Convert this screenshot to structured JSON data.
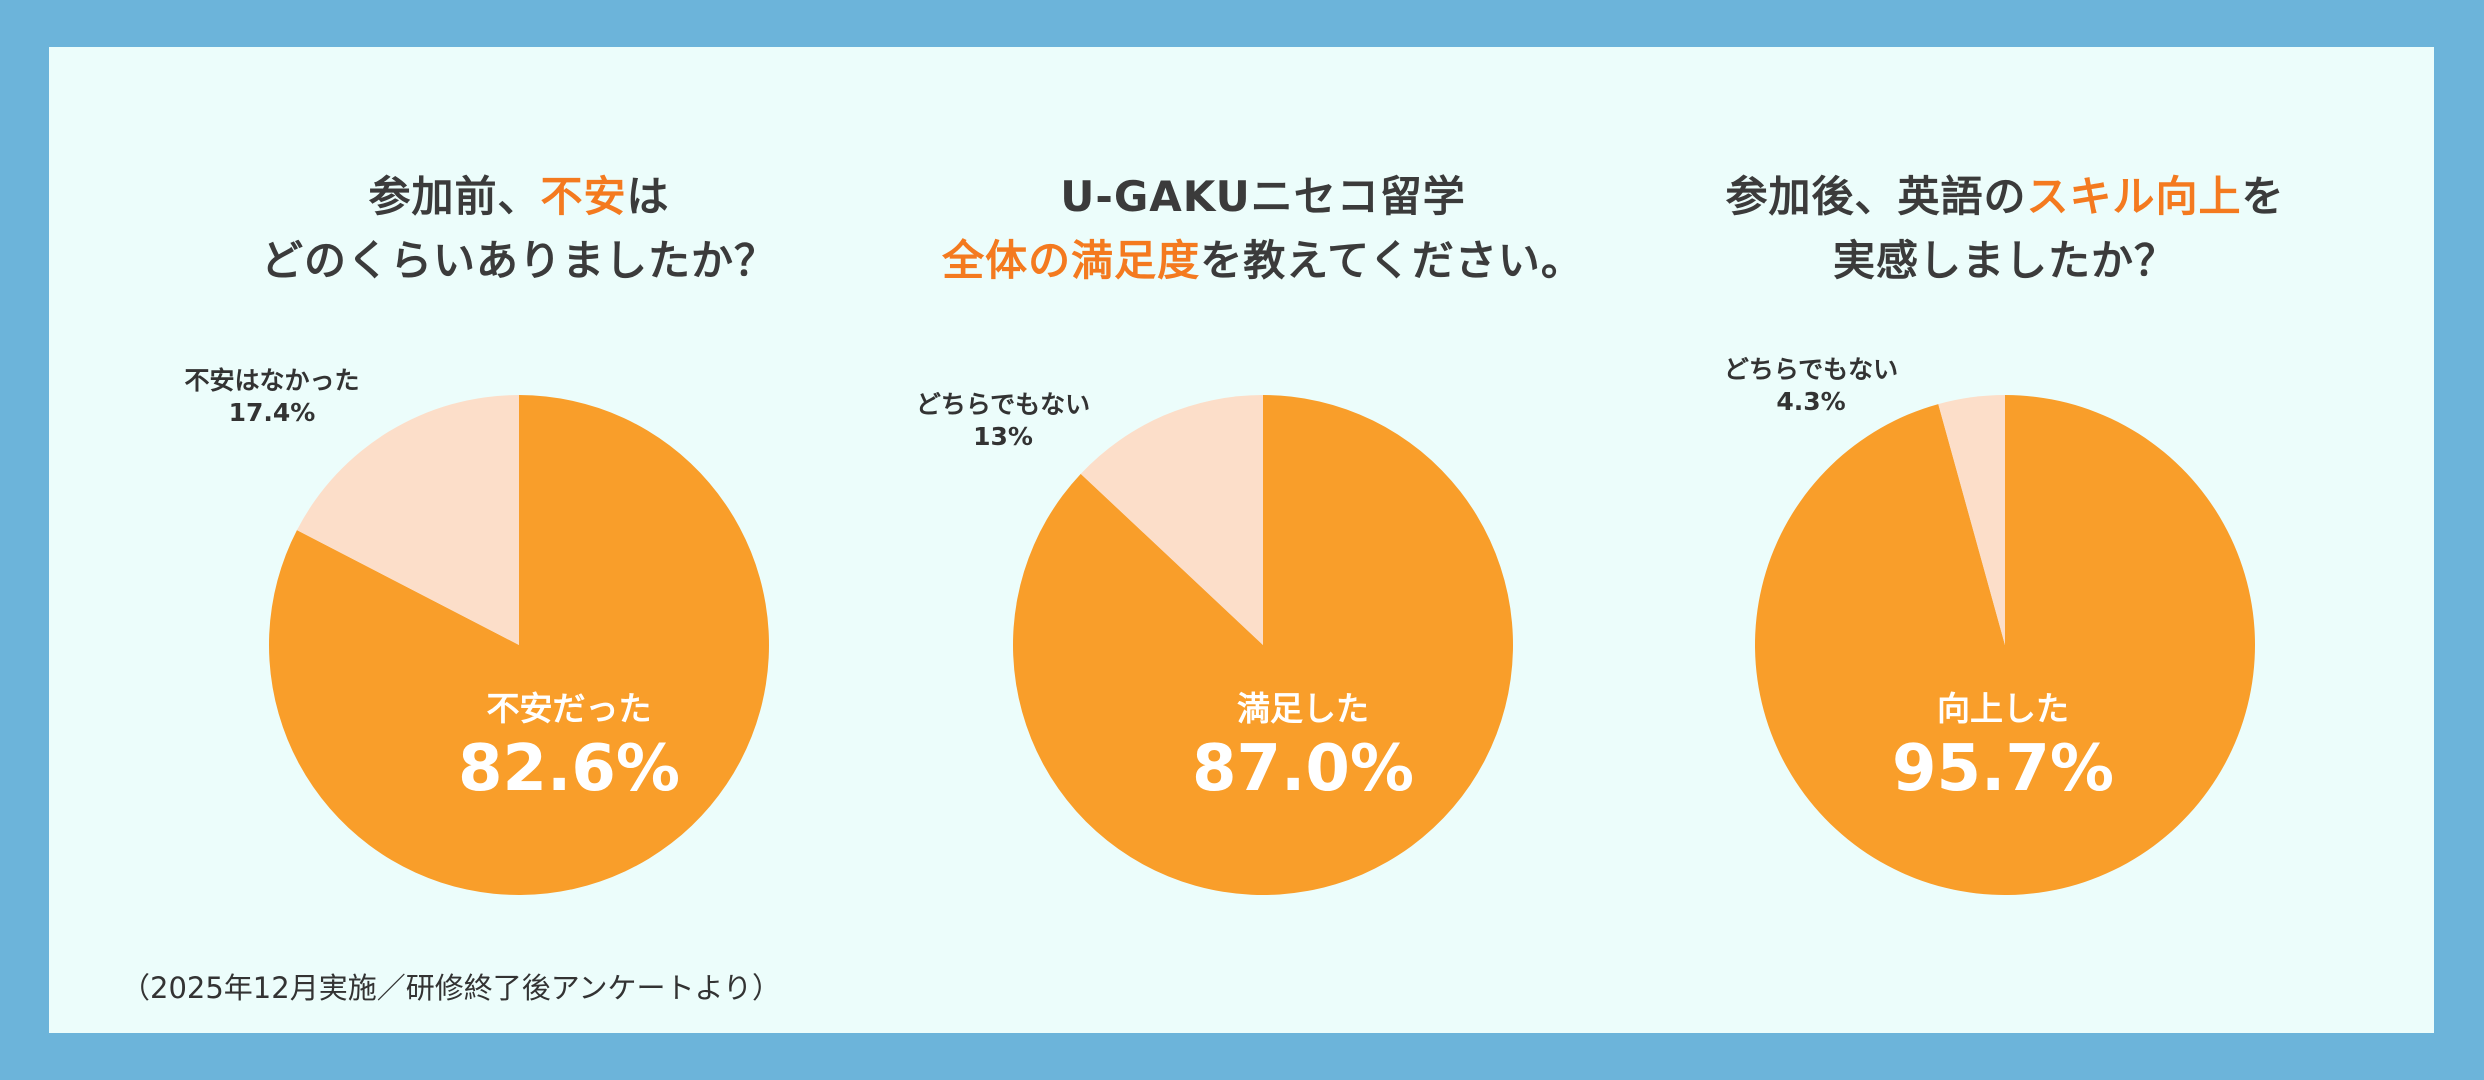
{
  "footnote": "（2025年12月実施／研修終了後アンケートより）",
  "colors": {
    "primary": "#f99e2a",
    "secondary": "#fcdec9",
    "highlight": "#f47a1f",
    "text": "#3b3b3b"
  },
  "chart_data": [
    {
      "type": "pie",
      "title": {
        "line1_pre": "参加前、",
        "line1_hl": "不安",
        "line1_post": "は",
        "line2_hl": "",
        "line2_post": "どのくらいありましたか？"
      },
      "slices": [
        {
          "label": "不安だった",
          "value": 82.6,
          "display": "82.6%"
        },
        {
          "label": "不安はなかった",
          "value": 17.4,
          "display": "17.4%"
        }
      ]
    },
    {
      "type": "pie",
      "title": {
        "line1_pre": "U-GAKUニセコ留学",
        "line1_hl": "",
        "line1_post": "",
        "line2_hl": "全体の満足度",
        "line2_post": "を教えてください。"
      },
      "slices": [
        {
          "label": "満足した",
          "value": 87.0,
          "display": "87.0%"
        },
        {
          "label": "どちらでもない",
          "value": 13,
          "display": "13%"
        }
      ]
    },
    {
      "type": "pie",
      "title": {
        "line1_pre": "参加後、英語の",
        "line1_hl": "スキル向上",
        "line1_post": "を",
        "line2_hl": "",
        "line2_post": "実感しましたか？"
      },
      "slices": [
        {
          "label": "向上した",
          "value": 95.7,
          "display": "95.7%"
        },
        {
          "label": "どちらでもない",
          "value": 4.3,
          "display": "4.3%"
        }
      ]
    }
  ]
}
